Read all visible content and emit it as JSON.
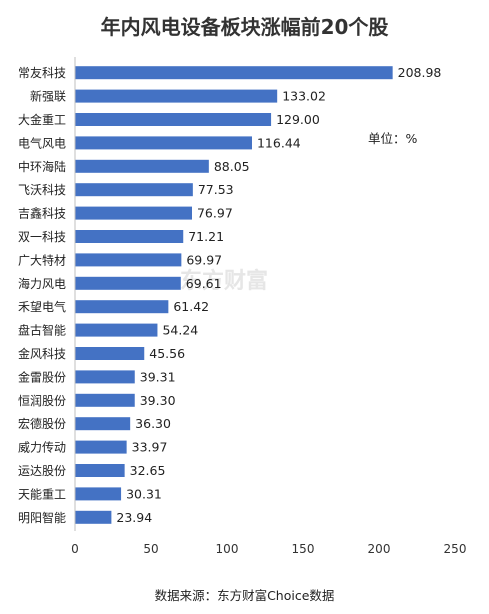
{
  "chart_data": {
    "type": "bar",
    "orientation": "horizontal",
    "title": "年内风电设备板块涨幅前20个股",
    "unit_label": "单位：%",
    "source": "数据来源：东方财富Choice数据",
    "watermark": "东方财富",
    "bar_color": "#4472c4",
    "xlim": [
      0,
      250
    ],
    "xticks": [
      0,
      50,
      100,
      150,
      200,
      250
    ],
    "grid": false,
    "categories": [
      "常友科技",
      "新强联",
      "大金重工",
      "电气风电",
      "中环海陆",
      "飞沃科技",
      "吉鑫科技",
      "双一科技",
      "广大特材",
      "海力风电",
      "禾望电气",
      "盘古智能",
      "金风科技",
      "金雷股份",
      "恒润股份",
      "宏德股份",
      "威力传动",
      "运达股份",
      "天能重工",
      "明阳智能"
    ],
    "values": [
      208.98,
      133.02,
      129.0,
      116.44,
      88.05,
      77.53,
      76.97,
      71.21,
      69.97,
      69.61,
      61.42,
      54.24,
      45.56,
      39.31,
      39.3,
      36.3,
      33.97,
      32.65,
      30.31,
      23.94
    ],
    "value_labels": [
      "208.98",
      "133.02",
      "129.00",
      "116.44",
      "88.05",
      "77.53",
      "76.97",
      "71.21",
      "69.97",
      "69.61",
      "61.42",
      "54.24",
      "45.56",
      "39.31",
      "39.30",
      "36.30",
      "33.97",
      "32.65",
      "30.31",
      "23.94"
    ]
  }
}
